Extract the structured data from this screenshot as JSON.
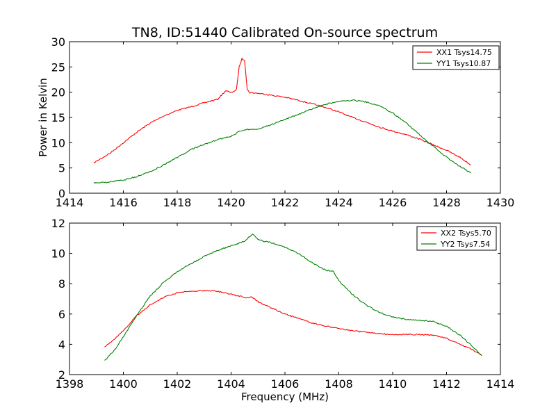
{
  "title": "TN8, ID:51440 Calibrated On-source spectrum",
  "colors": {
    "xx": "#ff0000",
    "yy": "#008000"
  },
  "chart_data": [
    {
      "type": "line",
      "title": "TN8, ID:51440 Calibrated On-source spectrum",
      "xlabel": "",
      "ylabel": "Power in Kelvin",
      "xlim": [
        1414,
        1430
      ],
      "ylim": [
        0,
        30
      ],
      "xticks": [
        "1414",
        "1416",
        "1418",
        "1420",
        "1422",
        "1424",
        "1426",
        "1428",
        "1430"
      ],
      "yticks": [
        "0",
        "5",
        "10",
        "15",
        "20",
        "25",
        "30"
      ],
      "legend_position": "top-right",
      "series": [
        {
          "name": "XX1 Tsys14.75",
          "color": "#ff0000",
          "x": [
            1414.9,
            1415.5,
            1416,
            1416.5,
            1417,
            1417.5,
            1418,
            1418.5,
            1419,
            1419.5,
            1419.8,
            1420.0,
            1420.2,
            1420.3,
            1420.4,
            1420.5,
            1420.6,
            1420.7,
            1421,
            1421.5,
            1422,
            1422.5,
            1423,
            1423.5,
            1424,
            1424.5,
            1425,
            1425.5,
            1426,
            1426.5,
            1427,
            1427.5,
            1428,
            1428.5,
            1428.9
          ],
          "y": [
            6.0,
            7.9,
            10.0,
            12.1,
            13.9,
            15.3,
            16.4,
            17.1,
            17.9,
            18.6,
            20.3,
            19.9,
            20.5,
            25.0,
            26.6,
            26.4,
            20.5,
            19.9,
            19.8,
            19.4,
            19.0,
            18.4,
            17.7,
            17.0,
            16.1,
            15.0,
            14.1,
            13.1,
            12.3,
            11.6,
            10.7,
            9.6,
            8.5,
            7.1,
            5.6
          ]
        },
        {
          "name": "YY1 Tsys10.87",
          "color": "#008000",
          "x": [
            1414.9,
            1415.5,
            1416,
            1416.5,
            1417,
            1417.5,
            1418,
            1418.5,
            1419,
            1419.5,
            1420,
            1420.3,
            1420.5,
            1421,
            1421.5,
            1422,
            1422.5,
            1423,
            1423.5,
            1424,
            1424.5,
            1425,
            1425.5,
            1426,
            1426.5,
            1427,
            1427.5,
            1428,
            1428.5,
            1428.9
          ],
          "y": [
            2.0,
            2.2,
            2.6,
            3.3,
            4.3,
            5.6,
            7.1,
            8.6,
            9.7,
            10.6,
            11.3,
            12.2,
            12.6,
            12.7,
            13.6,
            14.6,
            15.6,
            16.7,
            17.6,
            18.2,
            18.4,
            18.1,
            17.3,
            15.9,
            13.9,
            11.6,
            9.3,
            7.1,
            5.3,
            4.0
          ]
        }
      ]
    },
    {
      "type": "line",
      "title": "",
      "xlabel": "Frequency (MHz)",
      "ylabel": "",
      "xlim": [
        1398,
        1414
      ],
      "ylim": [
        2,
        12
      ],
      "xticks": [
        "1398",
        "1400",
        "1402",
        "1404",
        "1406",
        "1408",
        "1410",
        "1412",
        "1414"
      ],
      "yticks": [
        "2",
        "4",
        "6",
        "8",
        "10",
        "12"
      ],
      "legend_position": "top-right",
      "series": [
        {
          "name": "XX2 Tsys5.70",
          "color": "#ff0000",
          "x": [
            1399.3,
            1399.7,
            1400,
            1400.5,
            1401,
            1401.5,
            1402,
            1402.5,
            1403,
            1403.5,
            1404,
            1404.5,
            1404.8,
            1405,
            1405.5,
            1406,
            1406.5,
            1407,
            1407.5,
            1408,
            1408.5,
            1409,
            1409.5,
            1410,
            1410.5,
            1411,
            1411.5,
            1412,
            1412.5,
            1413,
            1413.3
          ],
          "y": [
            3.8,
            4.4,
            4.9,
            5.9,
            6.6,
            7.1,
            7.4,
            7.5,
            7.55,
            7.5,
            7.3,
            7.1,
            7.1,
            6.8,
            6.4,
            6.0,
            5.7,
            5.4,
            5.2,
            5.05,
            4.9,
            4.8,
            4.7,
            4.65,
            4.65,
            4.65,
            4.6,
            4.4,
            4.0,
            3.6,
            3.3
          ]
        },
        {
          "name": "YY2 Tsys7.54",
          "color": "#008000",
          "x": [
            1399.3,
            1399.7,
            1400,
            1400.5,
            1401,
            1401.5,
            1402,
            1402.5,
            1403,
            1403.5,
            1404,
            1404.5,
            1404.8,
            1405,
            1405.5,
            1406,
            1406.5,
            1407,
            1407.5,
            1407.8,
            1408,
            1408.5,
            1409,
            1409.5,
            1410,
            1410.5,
            1411,
            1411.5,
            1412,
            1412.5,
            1413,
            1413.3
          ],
          "y": [
            2.9,
            3.7,
            4.5,
            5.9,
            7.2,
            8.1,
            8.8,
            9.3,
            9.8,
            10.2,
            10.5,
            10.8,
            11.3,
            10.9,
            10.7,
            10.4,
            10.0,
            9.4,
            8.9,
            8.8,
            8.2,
            7.3,
            6.6,
            6.1,
            5.8,
            5.65,
            5.6,
            5.5,
            5.2,
            4.6,
            3.8,
            3.25
          ]
        }
      ]
    }
  ]
}
